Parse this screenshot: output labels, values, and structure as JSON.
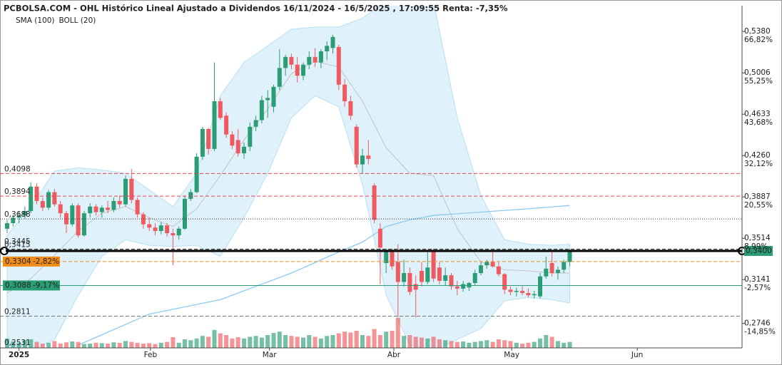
{
  "chart_data": {
    "type": "candlestick",
    "title": "PCBOLSA.COM - OHL Histórico Lineal Ajustado a Dividendos 16/11/2024 - 16/5/2025 , 17:09:55 Renta: -7,35%",
    "legend": [
      {
        "name": "SMA (100)",
        "color": "#8ccbf0"
      },
      {
        "name": "BOLL (20)",
        "color": "#c4c4c4"
      }
    ],
    "ylim": [
      0.2525,
      0.5612
    ],
    "yticks": [
      {
        "value": 0.538,
        "label": "0,5380"
      },
      {
        "value": 0.5006,
        "label": "0,5006"
      },
      {
        "value": 0.4633,
        "label": "0,4633"
      },
      {
        "value": 0.426,
        "label": "0,4260"
      },
      {
        "value": 0.3887,
        "label": "0,3887"
      },
      {
        "value": 0.3514,
        "label": "0,3514"
      },
      {
        "value": 0.3141,
        "label": "0,3141"
      },
      {
        "value": 0.2746,
        "label": "0,2746"
      }
    ],
    "ytick_changes": [
      "66,82%",
      "55,25%",
      "43,68%",
      "32,12%",
      "20,55%",
      "8,99%",
      "-2,57%",
      "-14,85%"
    ],
    "xticks": [
      {
        "value": 2,
        "label": "2025"
      },
      {
        "value": 24.2,
        "label": "Feb"
      },
      {
        "value": 44.3,
        "label": "Mar"
      },
      {
        "value": 65.3,
        "label": "Abr"
      },
      {
        "value": 85.2,
        "label": "May"
      },
      {
        "value": 106.4,
        "label": "Jun"
      }
    ],
    "up_color": "#2a9d74",
    "down_color": "#ee5a60",
    "open": [
      0.36,
      0.365,
      0.37,
      0.372,
      0.376,
      0.398,
      0.385,
      0.379,
      0.393,
      0.382,
      0.374,
      0.364,
      0.381,
      0.354,
      0.374,
      0.38,
      0.375,
      0.379,
      0.377,
      0.385,
      0.382,
      0.405,
      0.386,
      0.373,
      0.364,
      0.361,
      0.358,
      0.363,
      0.356,
      0.354,
      0.36,
      0.387,
      0.393,
      0.425,
      0.45,
      0.432,
      0.475,
      0.462,
      0.445,
      0.44,
      0.428,
      0.434,
      0.452,
      0.458,
      0.476,
      0.47,
      0.488,
      0.505,
      0.515,
      0.508,
      0.498,
      0.508,
      0.515,
      0.51,
      0.52,
      0.523,
      0.524,
      0.49,
      0.475,
      0.452,
      0.418,
      0.426,
      0.399,
      0.36,
      0.329,
      0.339,
      0.33,
      0.312,
      0.32,
      0.31,
      0.322,
      0.312,
      0.34,
      0.325,
      0.313,
      0.318,
      0.308,
      0.306,
      0.307,
      0.311,
      0.32,
      0.327,
      0.33,
      0.326,
      0.319,
      0.305,
      0.303,
      0.304,
      0.302,
      0.3,
      0.299,
      0.317,
      0.329,
      0.32,
      0.323,
      0.33
    ],
    "high": [
      0.368,
      0.373,
      0.376,
      0.38,
      0.402,
      0.401,
      0.388,
      0.395,
      0.396,
      0.385,
      0.376,
      0.383,
      0.383,
      0.376,
      0.383,
      0.382,
      0.381,
      0.385,
      0.388,
      0.39,
      0.408,
      0.414,
      0.388,
      0.375,
      0.37,
      0.365,
      0.366,
      0.365,
      0.36,
      0.362,
      0.39,
      0.396,
      0.428,
      0.452,
      0.451,
      0.51,
      0.478,
      0.465,
      0.448,
      0.45,
      0.438,
      0.456,
      0.462,
      0.48,
      0.485,
      0.49,
      0.522,
      0.517,
      0.518,
      0.515,
      0.51,
      0.52,
      0.523,
      0.522,
      0.529,
      0.535,
      0.526,
      0.495,
      0.48,
      0.454,
      0.432,
      0.44,
      0.401,
      0.365,
      0.342,
      0.342,
      0.346,
      0.332,
      0.325,
      0.318,
      0.33,
      0.34,
      0.342,
      0.33,
      0.325,
      0.32,
      0.313,
      0.313,
      0.312,
      0.323,
      0.33,
      0.332,
      0.34,
      0.33,
      0.32,
      0.308,
      0.307,
      0.308,
      0.306,
      0.304,
      0.32,
      0.335,
      0.34,
      0.326,
      0.332,
      0.342
    ],
    "low": [
      0.356,
      0.362,
      0.365,
      0.369,
      0.374,
      0.382,
      0.376,
      0.377,
      0.38,
      0.37,
      0.356,
      0.362,
      0.352,
      0.353,
      0.37,
      0.372,
      0.37,
      0.374,
      0.375,
      0.379,
      0.38,
      0.383,
      0.37,
      0.36,
      0.358,
      0.354,
      0.355,
      0.353,
      0.327,
      0.35,
      0.359,
      0.385,
      0.392,
      0.422,
      0.427,
      0.43,
      0.458,
      0.442,
      0.432,
      0.425,
      0.423,
      0.43,
      0.448,
      0.455,
      0.46,
      0.465,
      0.485,
      0.498,
      0.504,
      0.492,
      0.494,
      0.504,
      0.506,
      0.505,
      0.512,
      0.518,
      0.485,
      0.47,
      0.458,
      0.415,
      0.41,
      0.418,
      0.365,
      0.31,
      0.32,
      0.323,
      0.28,
      0.308,
      0.3,
      0.28,
      0.308,
      0.31,
      0.312,
      0.31,
      0.309,
      0.305,
      0.3,
      0.303,
      0.304,
      0.309,
      0.318,
      0.324,
      0.325,
      0.317,
      0.301,
      0.3,
      0.299,
      0.3,
      0.298,
      0.297,
      0.297,
      0.315,
      0.317,
      0.314,
      0.32,
      0.326
    ],
    "close": [
      0.365,
      0.37,
      0.372,
      0.376,
      0.398,
      0.385,
      0.379,
      0.393,
      0.382,
      0.374,
      0.364,
      0.381,
      0.354,
      0.374,
      0.38,
      0.375,
      0.379,
      0.377,
      0.385,
      0.382,
      0.405,
      0.386,
      0.373,
      0.364,
      0.361,
      0.358,
      0.363,
      0.356,
      0.354,
      0.36,
      0.387,
      0.393,
      0.425,
      0.45,
      0.432,
      0.475,
      0.46,
      0.445,
      0.435,
      0.428,
      0.434,
      0.452,
      0.458,
      0.476,
      0.478,
      0.488,
      0.505,
      0.515,
      0.508,
      0.498,
      0.508,
      0.515,
      0.51,
      0.52,
      0.525,
      0.533,
      0.49,
      0.475,
      0.462,
      0.418,
      0.426,
      0.423,
      0.368,
      0.343,
      0.339,
      0.326,
      0.312,
      0.32,
      0.303,
      0.305,
      0.312,
      0.325,
      0.315,
      0.313,
      0.318,
      0.308,
      0.306,
      0.31,
      0.311,
      0.32,
      0.327,
      0.33,
      0.326,
      0.319,
      0.305,
      0.303,
      0.304,
      0.302,
      0.3,
      0.301,
      0.317,
      0.324,
      0.32,
      0.323,
      0.33,
      0.34
    ],
    "volume": [
      22,
      15,
      12,
      18,
      20,
      14,
      10,
      12,
      16,
      10,
      13,
      15,
      14,
      9,
      10,
      12,
      11,
      10,
      13,
      12,
      16,
      14,
      12,
      10,
      11,
      9,
      12,
      14,
      25,
      12,
      20,
      18,
      22,
      28,
      26,
      42,
      34,
      30,
      22,
      25,
      22,
      26,
      28,
      24,
      30,
      35,
      38,
      30,
      28,
      26,
      24,
      30,
      26,
      22,
      28,
      30,
      34,
      38,
      36,
      40,
      30,
      28,
      44,
      30,
      38,
      40,
      70,
      28,
      30,
      26,
      24,
      22,
      26,
      20,
      18,
      16,
      14,
      15,
      12,
      14,
      16,
      18,
      14,
      20,
      18,
      16,
      12,
      10,
      12,
      14,
      22,
      30,
      26,
      16,
      12,
      14
    ],
    "bollinger": {
      "x": [
        0,
        4,
        8,
        12,
        16,
        20,
        24,
        28,
        32,
        36,
        40,
        44,
        48,
        52,
        56,
        60,
        64,
        68,
        72,
        76,
        80,
        84,
        88,
        92,
        95
      ],
      "upper": [
        0.354,
        0.38,
        0.412,
        0.415,
        0.413,
        0.41,
        0.395,
        0.38,
        0.41,
        0.48,
        0.51,
        0.525,
        0.54,
        0.542,
        0.542,
        0.55,
        0.565,
        0.565,
        0.565,
        0.46,
        0.39,
        0.35,
        0.346,
        0.345,
        0.346
      ],
      "middle": [
        0.302,
        0.315,
        0.336,
        0.358,
        0.374,
        0.38,
        0.37,
        0.362,
        0.378,
        0.408,
        0.44,
        0.468,
        0.5,
        0.511,
        0.506,
        0.475,
        0.433,
        0.41,
        0.408,
        0.36,
        0.33,
        0.323,
        0.322,
        0.32,
        0.32
      ],
      "lower": [
        0.25,
        0.25,
        0.26,
        0.3,
        0.335,
        0.35,
        0.345,
        0.344,
        0.345,
        0.335,
        0.37,
        0.41,
        0.46,
        0.48,
        0.47,
        0.4,
        0.3,
        0.255,
        0.25,
        0.26,
        0.27,
        0.295,
        0.298,
        0.296,
        0.293
      ]
    },
    "sma": {
      "x": [
        12,
        24,
        36,
        48,
        56,
        60,
        64,
        68,
        72,
        80,
        88,
        95
      ],
      "values": [
        0.255,
        0.283,
        0.296,
        0.32,
        0.339,
        0.348,
        0.362,
        0.368,
        0.372,
        0.375,
        0.378,
        0.381
      ]
    },
    "levels": [
      {
        "value": 0.4098,
        "label": "0,4098",
        "color": "#e0464e",
        "style": "dashed"
      },
      {
        "value": 0.3894,
        "label": "0,3894",
        "color": "#e0464e",
        "style": "dashed"
      },
      {
        "value": 0.3688,
        "label": "0,3688",
        "color": "#333333",
        "style": "dotted"
      },
      {
        "value": 0.3445,
        "label": "0,3445",
        "color": "#333333",
        "style": "none"
      },
      {
        "value": 0.3415,
        "label": "0,3415",
        "color": "#111111",
        "style": "dashed"
      },
      {
        "value": 0.3304,
        "label": "0,3304",
        "change": "-2,82%",
        "color": "#f08c1a",
        "style": "dashed"
      },
      {
        "value": 0.3088,
        "label": "0,3088",
        "change": "-9,17%",
        "color": "#2a9d74",
        "style": "solid"
      },
      {
        "value": 0.2811,
        "label": "0,2811",
        "color": "#777777",
        "style": "dashed"
      },
      {
        "value": 0.2531,
        "label": "0,2531",
        "color": "#777777",
        "style": "none"
      }
    ],
    "last_price": {
      "value": 0.34,
      "label": "0,3400",
      "color": "#2a9d74"
    }
  }
}
